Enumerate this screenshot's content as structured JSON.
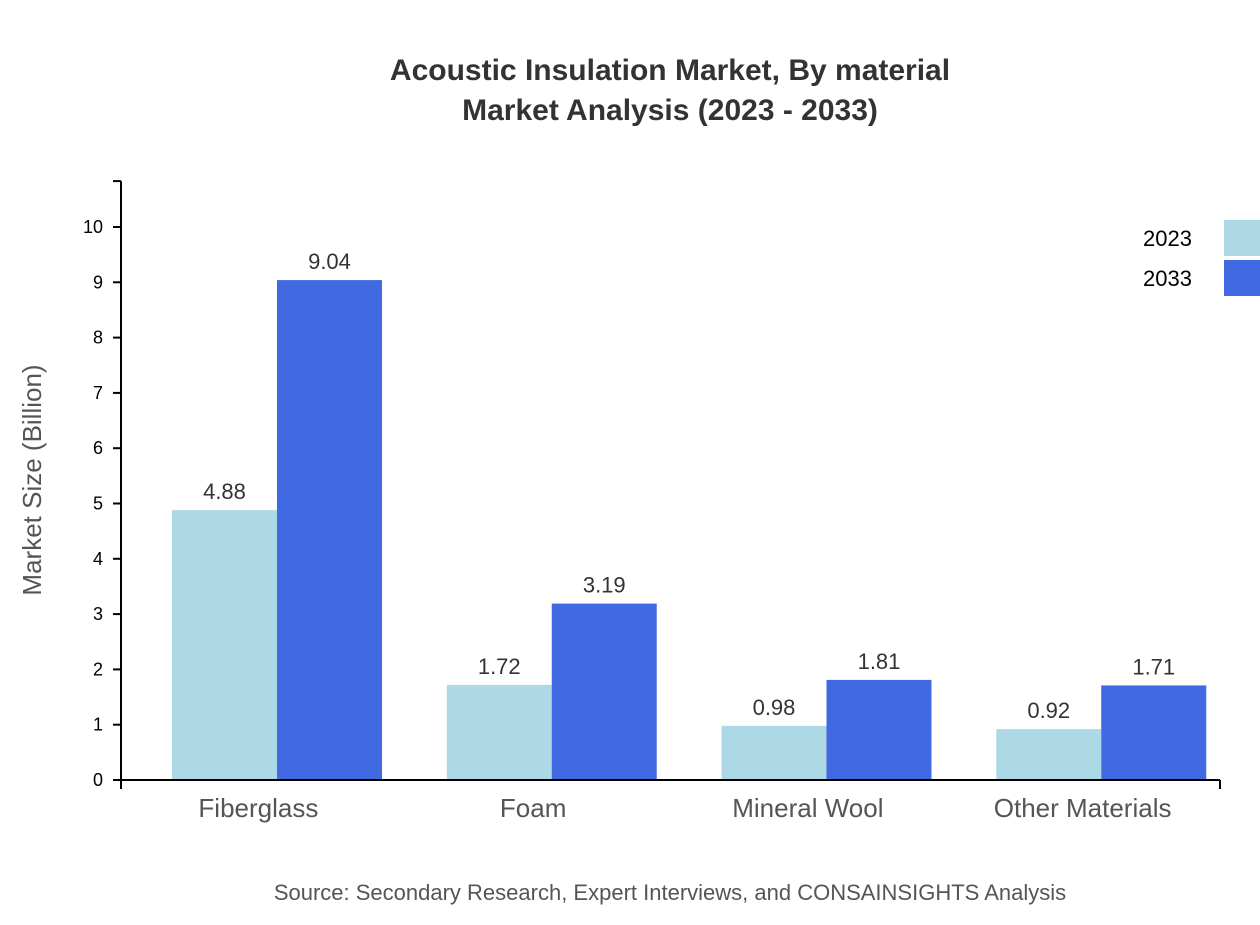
{
  "chart_data": {
    "type": "bar",
    "title": "Acoustic Insulation Market, By material",
    "subtitle": "Market Analysis (2023 - 2033)",
    "xlabel": "",
    "ylabel": "Market Size (Billion)",
    "ylim": [
      0,
      10.83
    ],
    "yticks": [
      0,
      1,
      2,
      3,
      4,
      5,
      6,
      7,
      8,
      9,
      10
    ],
    "grid": false,
    "legend_position": "top-right",
    "categories": [
      "Fiberglass",
      "Foam",
      "Mineral Wool",
      "Other Materials"
    ],
    "series": [
      {
        "name": "2023",
        "color": "#add8e6",
        "values": [
          4.88,
          1.72,
          0.98,
          0.92
        ]
      },
      {
        "name": "2033",
        "color": "#4169e1",
        "values": [
          9.04,
          3.19,
          1.81,
          1.71
        ]
      }
    ],
    "source": "Source: Secondary Research, Expert Interviews, and CONSAINSIGHTS Analysis"
  }
}
